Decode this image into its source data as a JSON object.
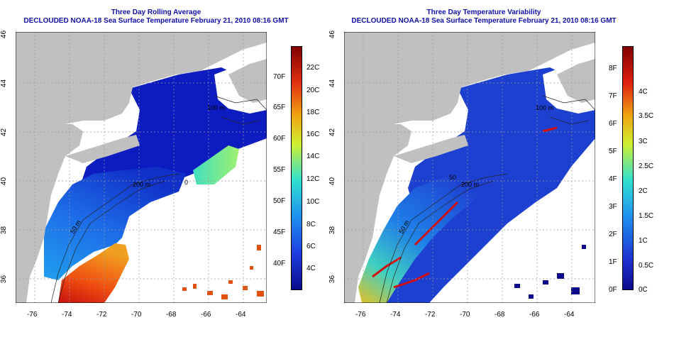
{
  "panels": [
    {
      "title_line1": "Three Day Rolling Average",
      "title_line2": "DECLOUDED NOAA-18 Sea Surface Temperature February 21, 2010 08:16 GMT",
      "x_ticks": [
        "-76",
        "-74",
        "-72",
        "-70",
        "-68",
        "-66",
        "-64"
      ],
      "y_ticks": [
        "46",
        "44",
        "42",
        "40",
        "38",
        "36"
      ],
      "contour_labels": [
        "100 m",
        "200 m",
        "50 m",
        "0"
      ],
      "colorbar": {
        "left_ticks_f": [
          "70F",
          "65F",
          "60F",
          "55F",
          "50F",
          "45F",
          "40F"
        ],
        "right_ticks_c": [
          "22C",
          "20C",
          "18C",
          "16C",
          "14C",
          "12C",
          "10C",
          "8C",
          "6C",
          "4C"
        ]
      }
    },
    {
      "title_line1": "Three Day Temperature Variability",
      "title_line2": "DECLOUDED NOAA-18 Sea Surface Temperature February 21, 2010 08:16 GMT",
      "x_ticks": [
        "-76",
        "-74",
        "-72",
        "-70",
        "-68",
        "-66",
        "-64"
      ],
      "y_ticks": [
        "46",
        "44",
        "42",
        "40",
        "38",
        "36"
      ],
      "contour_labels": [
        "100 m",
        "200 m",
        "50 m",
        "50"
      ],
      "colorbar": {
        "left_ticks_f": [
          "8F",
          "7F",
          "6F",
          "5F",
          "4F",
          "3F",
          "2F",
          "1F",
          "0F"
        ],
        "right_ticks_c": [
          "4C",
          "3.5C",
          "3C",
          "2.5C",
          "2C",
          "1.5C",
          "1C",
          "0.5C",
          "0C"
        ]
      }
    }
  ],
  "colors": {
    "land": "#c0c0c0",
    "no_data": "#ffffff",
    "title": "#1010a8",
    "sst_scale": [
      "#0a0a8a",
      "#1e50e0",
      "#1fa0f0",
      "#30e0d0",
      "#f0e020",
      "#f08010",
      "#c01010",
      "#800000"
    ],
    "var_scale": [
      "#0a0a8a",
      "#1e50e0",
      "#1fb0f0",
      "#30e0c0",
      "#c0f040",
      "#f0c010",
      "#e02010",
      "#800000"
    ]
  }
}
